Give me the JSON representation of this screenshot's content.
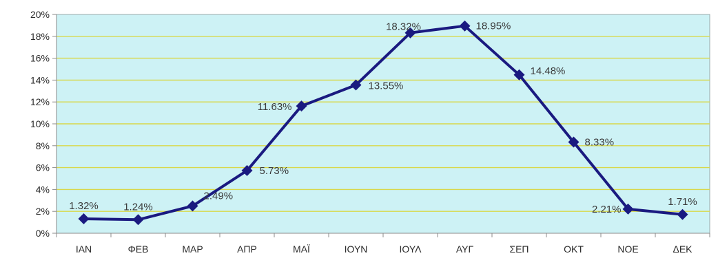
{
  "chart_data": {
    "type": "line",
    "categories": [
      "ΙΑΝ",
      "ΦΕΒ",
      "ΜΑΡ",
      "ΑΠΡ",
      "ΜΑΪ",
      "ΙΟΥΝ",
      "ΙΟΥΛ",
      "ΑΥΓ",
      "ΣΕΠ",
      "ΟΚΤ",
      "ΝΟΕ",
      "ΔΕΚ"
    ],
    "series": [
      {
        "values": [
          1.32,
          1.24,
          2.49,
          5.73,
          11.63,
          13.55,
          18.32,
          18.95,
          14.48,
          8.33,
          2.21,
          1.71
        ],
        "labels": [
          "1.32%",
          "1.24%",
          "2.49%",
          "5.73%",
          "11.63%",
          "13.55%",
          "18.32%",
          "18.95%",
          "14.48%",
          "8.33%",
          "2.21%",
          "1.71%"
        ]
      }
    ],
    "y_ticks": [
      "0%",
      "2%",
      "4%",
      "6%",
      "8%",
      "10%",
      "12%",
      "14%",
      "16%",
      "18%",
      "20%"
    ],
    "ylim": [
      0,
      20
    ],
    "grid": true,
    "legend": "none",
    "colors": {
      "plot_background": "#cdf2f5",
      "gridline": "#d8d84a",
      "line": "#1a1a80",
      "marker": "#1a1a80",
      "axis": "#8a8a8a"
    }
  }
}
